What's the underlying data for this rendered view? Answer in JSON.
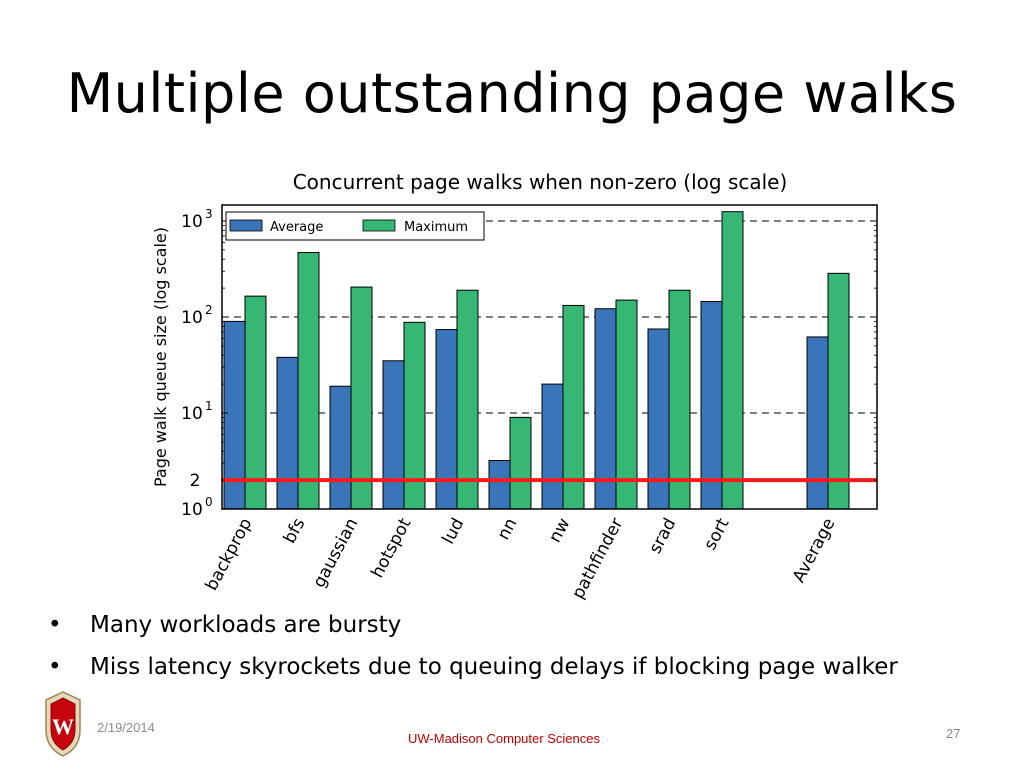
{
  "slide": {
    "title": "Multiple outstanding page walks",
    "chart_caption": "Concurrent page walks when non-zero (log scale)",
    "bullets": [
      "Many workloads are bursty",
      "Miss latency skyrockets due to queuing delays if blocking page walker"
    ],
    "bullet_glyph": "•",
    "footer_date": "2/19/2014",
    "footer_center": "UW-Madison Computer Sciences",
    "page_number": "27",
    "logo_letter": "W"
  },
  "chart_data": {
    "type": "bar",
    "title": "Concurrent page walks when non-zero (log scale)",
    "ylabel": "Page walk queue size (log scale)",
    "xlabel": "",
    "yscale": "log",
    "ylim": [
      1,
      1500
    ],
    "yticks": [
      {
        "value": 1,
        "base": "10",
        "exp": "0"
      },
      {
        "value": 10,
        "base": "10",
        "exp": "1"
      },
      {
        "value": 100,
        "base": "10",
        "exp": "2"
      },
      {
        "value": 1000,
        "base": "10",
        "exp": "3"
      }
    ],
    "grid": "horizontal dashed",
    "legend_position": "top-left",
    "categories": [
      "backprop",
      "bfs",
      "gaussian",
      "hotspot",
      "lud",
      "nn",
      "nw",
      "pathfinder",
      "srad",
      "sort",
      "Average"
    ],
    "series": [
      {
        "name": "Average",
        "color": "#3b75b9",
        "values": [
          90,
          38,
          19,
          35,
          74,
          3.2,
          20,
          122,
          75,
          145,
          62
        ]
      },
      {
        "name": "Maximum",
        "color": "#36b874",
        "values": [
          165,
          470,
          205,
          88,
          190,
          9,
          132,
          150,
          190,
          1250,
          285
        ]
      }
    ],
    "reference_line": {
      "value": 2,
      "label": "2",
      "color": "#ff1a1a"
    }
  }
}
